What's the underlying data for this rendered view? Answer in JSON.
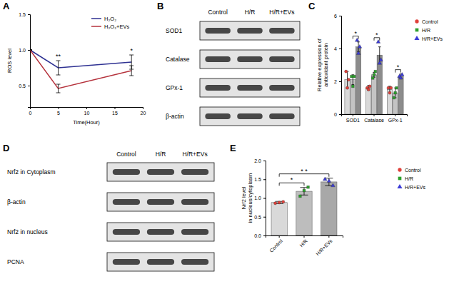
{
  "chart_data": [
    {
      "type": "line",
      "title": "A",
      "x_label": "Time(Hour)",
      "y_label": "ROS level",
      "x": [
        0,
        5,
        18
      ],
      "series": [
        {
          "name": "H₂O₂",
          "color": "#2e3192",
          "values": [
            1.0,
            0.75,
            0.83
          ],
          "errors": [
            0,
            0.1,
            0.1
          ]
        },
        {
          "name": "H₂O₂+EVs",
          "color": "#b5323c",
          "values": [
            1.0,
            0.46,
            0.71
          ],
          "errors": [
            0,
            0.06,
            0.07
          ]
        }
      ],
      "xlim": [
        0,
        20
      ],
      "xticks": [
        0,
        5,
        10,
        15,
        20
      ],
      "ylim": [
        0.2,
        1.5
      ],
      "yticks": [
        0.5,
        {
          "value": 1,
          "label": "1.0"
        },
        1.5
      ],
      "legend": "upper right",
      "annotations": [
        {
          "text": "**",
          "x": 5
        },
        {
          "text": "*",
          "x": 18
        }
      ]
    },
    {
      "type": "bar",
      "title": "C",
      "y_label": "Relative expression of antioxidant protein",
      "categories": [
        "SOD1",
        "Catalase",
        "GPx-1"
      ],
      "series": [
        {
          "name": "Control",
          "color": "#e0403a",
          "values": [
            2.1,
            1.6,
            1.5
          ],
          "errors": [
            0.5,
            0.15,
            0.2
          ],
          "points": [
            [
              2.6,
              1.6,
              2.1
            ],
            [
              1.6,
              1.5,
              1.7
            ],
            [
              1.6,
              1.3,
              1.6
            ]
          ]
        },
        {
          "name": "H/R",
          "color": "#2ca02c",
          "values": [
            2.1,
            2.4,
            1.3
          ],
          "errors": [
            0.3,
            0.15,
            0.3
          ],
          "points": [
            [
              2.3,
              1.7,
              2.3
            ],
            [
              2.2,
              2.4,
              2.6
            ],
            [
              1.0,
              1.3,
              1.6
            ]
          ]
        },
        {
          "name": "H/R+EVs",
          "color": "#3b3bd6",
          "values": [
            4.1,
            3.6,
            2.3
          ],
          "errors": [
            0.3,
            0.5,
            0.15
          ],
          "points": [
            [
              4.5,
              3.7,
              4.1
            ],
            [
              4.4,
              3.1,
              3.3
            ],
            [
              2.3,
              2.2,
              2.4
            ]
          ]
        }
      ],
      "ylim": [
        0,
        6
      ],
      "yticks": [
        0,
        2,
        4,
        6
      ],
      "legend": "right",
      "annotations": [
        {
          "text": "*",
          "category": 0,
          "between": [
            1,
            2
          ]
        },
        {
          "text": "*",
          "category": 1,
          "between": [
            1,
            2
          ]
        },
        {
          "text": "*",
          "category": 2,
          "between": [
            1,
            2
          ]
        }
      ]
    },
    {
      "type": "bar",
      "title": "E",
      "y_label": "Nrf2 level in nucleus/cytoplasm",
      "categories": [
        "Control",
        "H/R",
        "H/R+EVs"
      ],
      "values": [
        0.88,
        1.18,
        1.43
      ],
      "errors": [
        0.03,
        0.1,
        0.1
      ],
      "points": [
        [
          0.86,
          0.88,
          0.9
        ],
        [
          1.05,
          1.2,
          1.29
        ],
        [
          1.5,
          1.45,
          1.33
        ]
      ],
      "colors": [
        "#e0403a",
        "#2ca02c",
        "#3b3bd6"
      ],
      "ylim": [
        0,
        2
      ],
      "yticks": [
        {
          "value": 0,
          "label": "0.0"
        },
        0.5,
        {
          "value": 1,
          "label": "1.0"
        },
        1.5,
        {
          "value": 2,
          "label": "2.0"
        }
      ],
      "legend": "right",
      "annotations": [
        {
          "text": "*",
          "between": [
            0,
            1
          ]
        },
        {
          "text": "* *",
          "between": [
            0,
            2
          ]
        }
      ]
    }
  ],
  "blots": [
    {
      "title": "B",
      "lanes": [
        "Control",
        "H/R",
        "H/R+EVs"
      ],
      "rows": [
        "SOD1",
        "Catalase",
        "GPx-1",
        "β-actin"
      ]
    },
    {
      "title": "D",
      "lanes": [
        "Control",
        "H/R",
        "H/R+EVs"
      ],
      "rows": [
        "Nrf2 in Cytoplasm",
        "β-actin",
        "Nrf2 in nucleus",
        "PCNA"
      ]
    }
  ]
}
